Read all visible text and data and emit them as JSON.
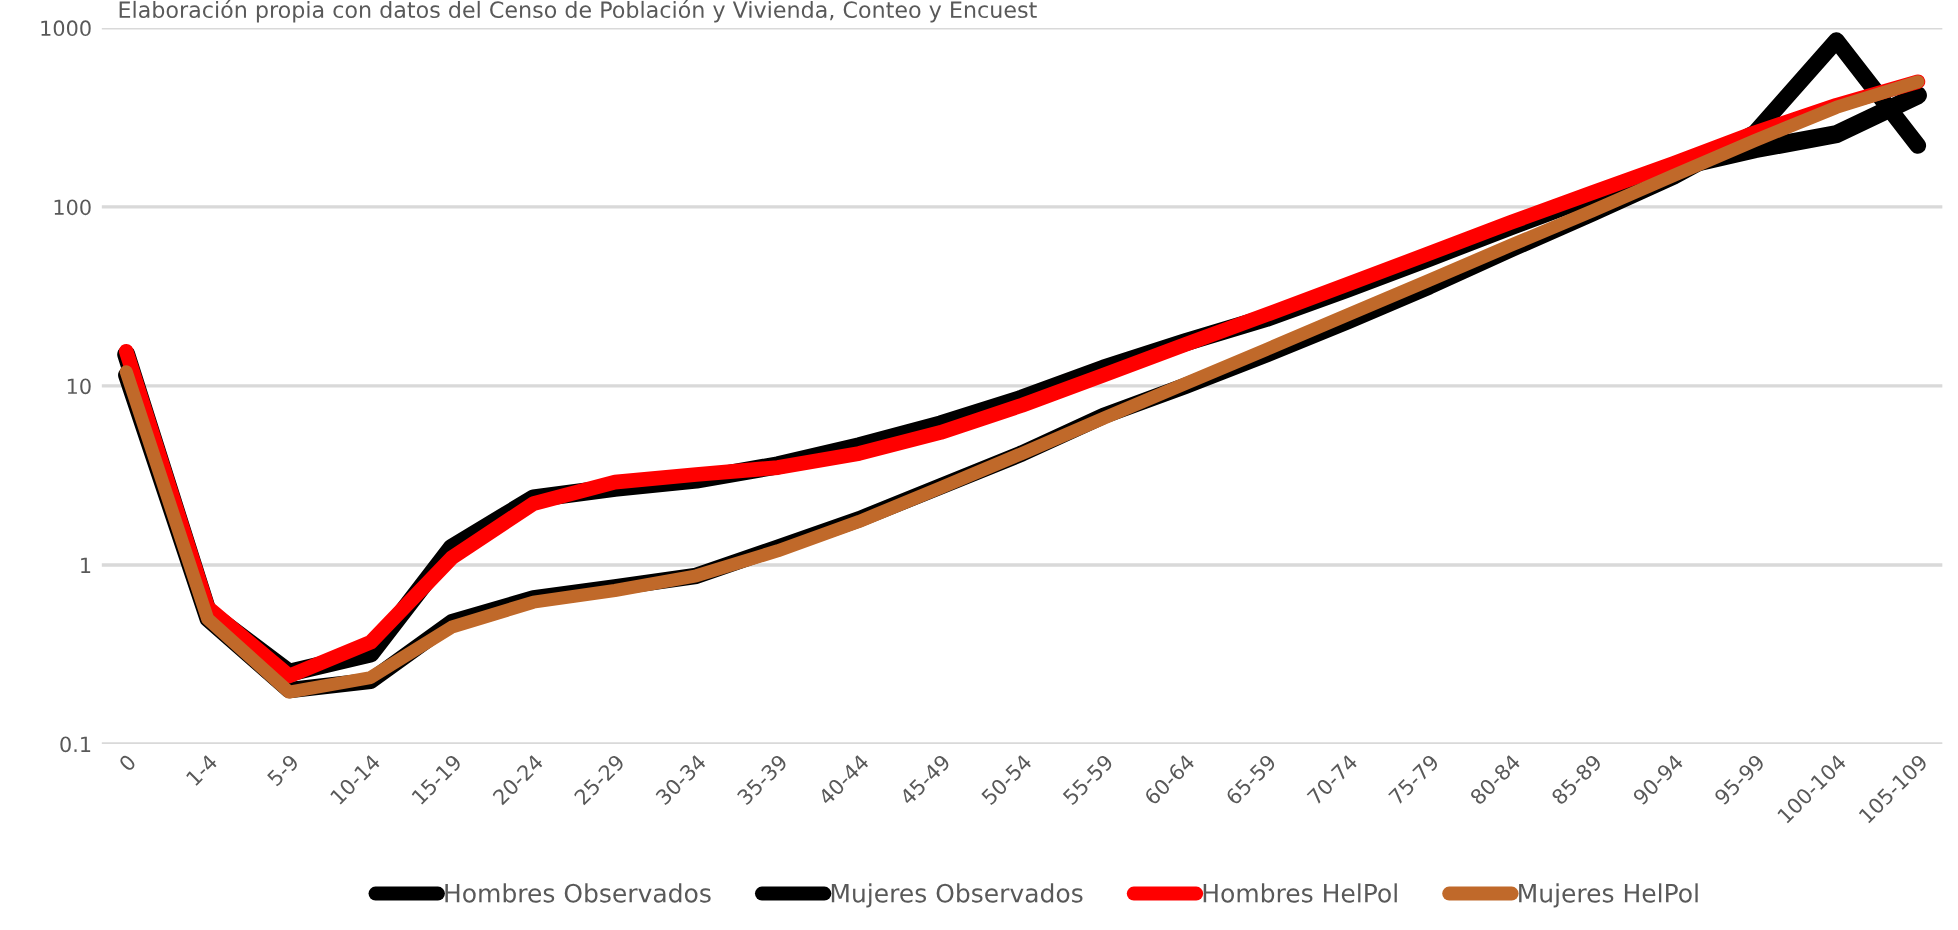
{
  "chart_data": {
    "type": "line",
    "subtitle": "Elaboración propia con datos del Censo de Población y Vivienda, Conteo y Encuest",
    "categories": [
      "0",
      "1-4",
      "5-9",
      "10-14",
      "15-19",
      "20-24",
      "25-29",
      "30-34",
      "35-39",
      "40-44",
      "45-49",
      "50-54",
      "55-59",
      "60-64",
      "65-59",
      "70-74",
      "75-79",
      "80-84",
      "85-89",
      "90-94",
      "95-99",
      "100-104",
      "105-109"
    ],
    "series": [
      {
        "name": "Hombres Observados",
        "color": "#000000",
        "values": [
          15,
          0.55,
          0.25,
          0.32,
          1.25,
          2.35,
          2.7,
          3.0,
          3.6,
          4.6,
          6.1,
          8.5,
          12.5,
          17.5,
          24,
          35,
          52,
          78,
          115,
          165,
          210,
          255,
          420
        ]
      },
      {
        "name": "Mujeres Observados",
        "color": "#000000",
        "values": [
          11.5,
          0.5,
          0.2,
          0.225,
          0.48,
          0.65,
          0.75,
          0.87,
          1.25,
          1.8,
          2.75,
          4.2,
          6.8,
          10,
          15,
          23,
          36,
          58,
          92,
          148,
          260,
          850,
          220
        ]
      },
      {
        "name": "Hombres HelPol",
        "color": "#ff0000",
        "values": [
          15.6,
          0.58,
          0.24,
          0.37,
          1.1,
          2.2,
          2.9,
          3.2,
          3.5,
          4.2,
          5.5,
          7.8,
          11.5,
          17,
          25,
          37,
          55,
          82,
          120,
          175,
          260,
          370,
          500
        ]
      },
      {
        "name": "Mujeres HelPol",
        "color": "#c0692a",
        "values": [
          12,
          0.5,
          0.195,
          0.235,
          0.45,
          0.62,
          0.72,
          0.87,
          1.2,
          1.75,
          2.7,
          4.2,
          6.6,
          10.3,
          16,
          25,
          39,
          61,
          95,
          150,
          235,
          360,
          500
        ]
      }
    ],
    "log": "y",
    "ylim": [
      0.1,
      1000
    ],
    "yticks": [
      0.1,
      1,
      10,
      100,
      1000
    ],
    "grid": "y",
    "legend": "bottom",
    "marker": "none",
    "line_style": "solid"
  }
}
